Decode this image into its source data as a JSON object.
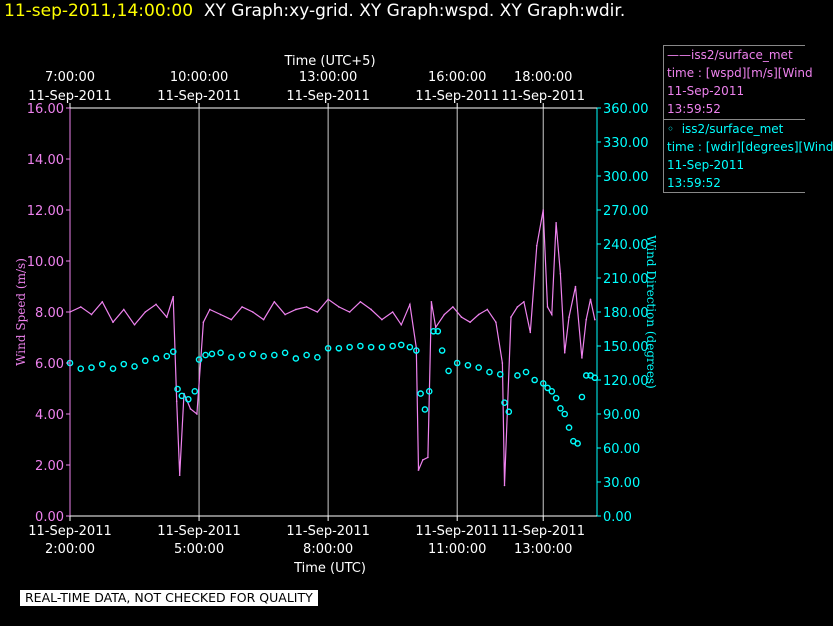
{
  "header": {
    "datetime": "11-sep-2011,14:00:00",
    "graphs": "XY Graph:xy-grid.  XY Graph:wspd.  XY Graph:wdir."
  },
  "legend": [
    {
      "line1": "iss2/surface_met",
      "line2": "time : [wspd][m/s][Wind",
      "line3": "11-Sep-2011",
      "line4": "13:59:52",
      "color": "#ee82ee"
    },
    {
      "line1": "iss2/surface_met",
      "line2": "time : [wdir][degrees][Wind",
      "line3": "11-Sep-2011",
      "line4": "13:59:52",
      "color": "#00ffff"
    }
  ],
  "note": "REAL-TIME DATA, NOT CHECKED FOR QUALITY",
  "chart_data": {
    "type": "line",
    "xlabel": "Time (UTC)",
    "x2label": "Time (UTC+5)",
    "ylabel": "Wind Speed (m/s)",
    "y2label": "Wind Direction (degrees)",
    "xlim": [
      1.5,
      13.75
    ],
    "ylim": [
      0,
      16
    ],
    "y2lim": [
      0,
      360
    ],
    "grid": "vertical",
    "legend_position": "right",
    "bottom_ticks": [
      {
        "x": 1.5,
        "line1": "11-Sep-2011",
        "line2": "2:00:00"
      },
      {
        "x": 4.5,
        "line1": "11-Sep-2011",
        "line2": "5:00:00"
      },
      {
        "x": 7.5,
        "line1": "11-Sep-2011",
        "line2": "8:00:00"
      },
      {
        "x": 10.5,
        "line1": "11-Sep-2011",
        "line2": "11:00:00"
      },
      {
        "x": 12.5,
        "line1": "11-Sep-2011",
        "line2": "13:00:00"
      }
    ],
    "top_ticks": [
      {
        "x": 1.5,
        "line1": "7:00:00",
        "line2": "11-Sep-2011"
      },
      {
        "x": 4.5,
        "line1": "10:00:00",
        "line2": "11-Sep-2011"
      },
      {
        "x": 7.5,
        "line1": "13:00:00",
        "line2": "11-Sep-2011"
      },
      {
        "x": 10.5,
        "line1": "16:00:00",
        "line2": "11-Sep-2011"
      },
      {
        "x": 12.5,
        "line1": "18:00:00",
        "line2": "11-Sep-2011"
      }
    ],
    "y_ticks": [
      "0.00",
      "2.00",
      "4.00",
      "6.00",
      "8.00",
      "10.00",
      "12.00",
      "14.00",
      "16.00"
    ],
    "y2_ticks": [
      "0.00",
      "30.00",
      "60.00",
      "90.00",
      "120.00",
      "150.00",
      "180.00",
      "210.00",
      "240.00",
      "270.00",
      "300.00",
      "330.00",
      "360.00"
    ],
    "series": [
      {
        "name": "iss2/surface_met time : [wspd][m/s][Wind",
        "axis": "left",
        "style": "line",
        "color": "#ee82ee",
        "x": [
          1.5,
          1.75,
          2.0,
          2.25,
          2.5,
          2.75,
          3.0,
          3.25,
          3.5,
          3.75,
          3.9,
          3.98,
          4.05,
          4.15,
          4.3,
          4.45,
          4.6,
          4.75,
          5.0,
          5.25,
          5.5,
          5.75,
          6.0,
          6.25,
          6.5,
          6.75,
          7.0,
          7.25,
          7.5,
          7.75,
          8.0,
          8.25,
          8.5,
          8.75,
          9.0,
          9.2,
          9.4,
          9.55,
          9.6,
          9.7,
          9.82,
          9.9,
          10.0,
          10.2,
          10.4,
          10.6,
          10.8,
          11.0,
          11.2,
          11.4,
          11.55,
          11.6,
          11.75,
          11.9,
          12.05,
          12.2,
          12.35,
          12.5,
          12.6,
          12.7,
          12.8,
          12.9,
          13.0,
          13.1,
          13.25,
          13.4,
          13.5,
          13.6,
          13.7
        ],
        "values": [
          8.0,
          8.2,
          7.9,
          8.4,
          7.6,
          8.1,
          7.5,
          8.0,
          8.3,
          7.8,
          8.6,
          4.5,
          1.6,
          4.8,
          4.2,
          4.0,
          7.6,
          8.1,
          7.9,
          7.7,
          8.2,
          8.0,
          7.7,
          8.4,
          7.9,
          8.1,
          8.2,
          8.0,
          8.5,
          8.2,
          8.0,
          8.4,
          8.1,
          7.7,
          8.0,
          7.5,
          8.3,
          6.6,
          1.8,
          2.2,
          2.3,
          8.4,
          7.4,
          7.9,
          8.2,
          7.8,
          7.6,
          7.9,
          8.1,
          7.6,
          6.0,
          1.2,
          7.8,
          8.2,
          8.4,
          7.2,
          10.6,
          12.0,
          8.2,
          7.9,
          11.5,
          9.5,
          6.4,
          7.8,
          9.0,
          6.2,
          7.7,
          8.5,
          7.7
        ]
      },
      {
        "name": "iss2/surface_met time : [wdir][degrees][Wind",
        "axis": "right",
        "style": "points",
        "color": "#00ffff",
        "x": [
          1.5,
          1.75,
          2.0,
          2.25,
          2.5,
          2.75,
          3.0,
          3.25,
          3.5,
          3.75,
          3.9,
          4.0,
          4.1,
          4.25,
          4.4,
          4.5,
          4.65,
          4.8,
          5.0,
          5.25,
          5.5,
          5.75,
          6.0,
          6.25,
          6.5,
          6.75,
          7.0,
          7.25,
          7.5,
          7.75,
          8.0,
          8.25,
          8.5,
          8.75,
          9.0,
          9.2,
          9.4,
          9.55,
          9.65,
          9.75,
          9.85,
          9.95,
          10.05,
          10.15,
          10.3,
          10.5,
          10.75,
          11.0,
          11.25,
          11.5,
          11.6,
          11.7,
          11.9,
          12.1,
          12.3,
          12.5,
          12.6,
          12.7,
          12.8,
          12.9,
          13.0,
          13.1,
          13.2,
          13.3,
          13.4,
          13.5,
          13.6,
          13.7
        ],
        "values": [
          135,
          130,
          131,
          134,
          130,
          134,
          132,
          137,
          139,
          141,
          145,
          112,
          106,
          103,
          110,
          138,
          142,
          143,
          144,
          140,
          142,
          143,
          141,
          142,
          144,
          139,
          142,
          140,
          148,
          148,
          149,
          150,
          149,
          149,
          150,
          151,
          149,
          146,
          108,
          94,
          110,
          163,
          163,
          146,
          128,
          135,
          133,
          131,
          127,
          125,
          100,
          92,
          124,
          127,
          120,
          117,
          113,
          110,
          104,
          95,
          90,
          78,
          66,
          64,
          105,
          124,
          124,
          122
        ]
      }
    ]
  }
}
